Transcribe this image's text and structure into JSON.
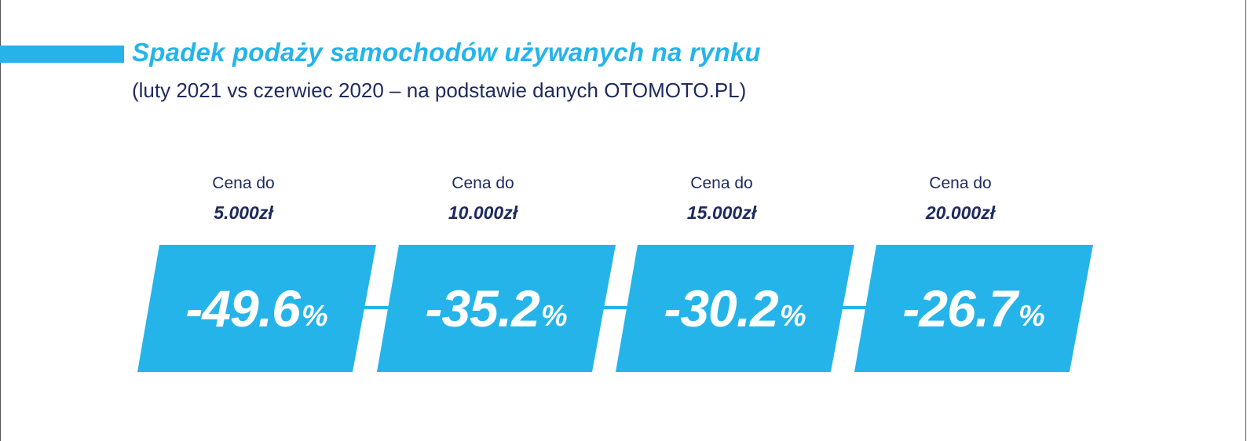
{
  "title": "Spadek podaży samochodów używanych na rynku",
  "subtitle": "(luty 2021 vs czerwiec 2020 – na podstawie danych OTOMOTO.PL)",
  "colors": {
    "accent": "#25b4ea",
    "text_dark": "#1e2a5e",
    "white": "#ffffff"
  },
  "cards": [
    {
      "label": "Cena do",
      "price": "5.000zł",
      "value": "-49.6",
      "unit": "%"
    },
    {
      "label": "Cena do",
      "price": "10.000zł",
      "value": "-35.2",
      "unit": "%"
    },
    {
      "label": "Cena do",
      "price": "15.000zł",
      "value": "-30.2",
      "unit": "%"
    },
    {
      "label": "Cena do",
      "price": "20.000zł",
      "value": "-26.7",
      "unit": "%"
    }
  ]
}
